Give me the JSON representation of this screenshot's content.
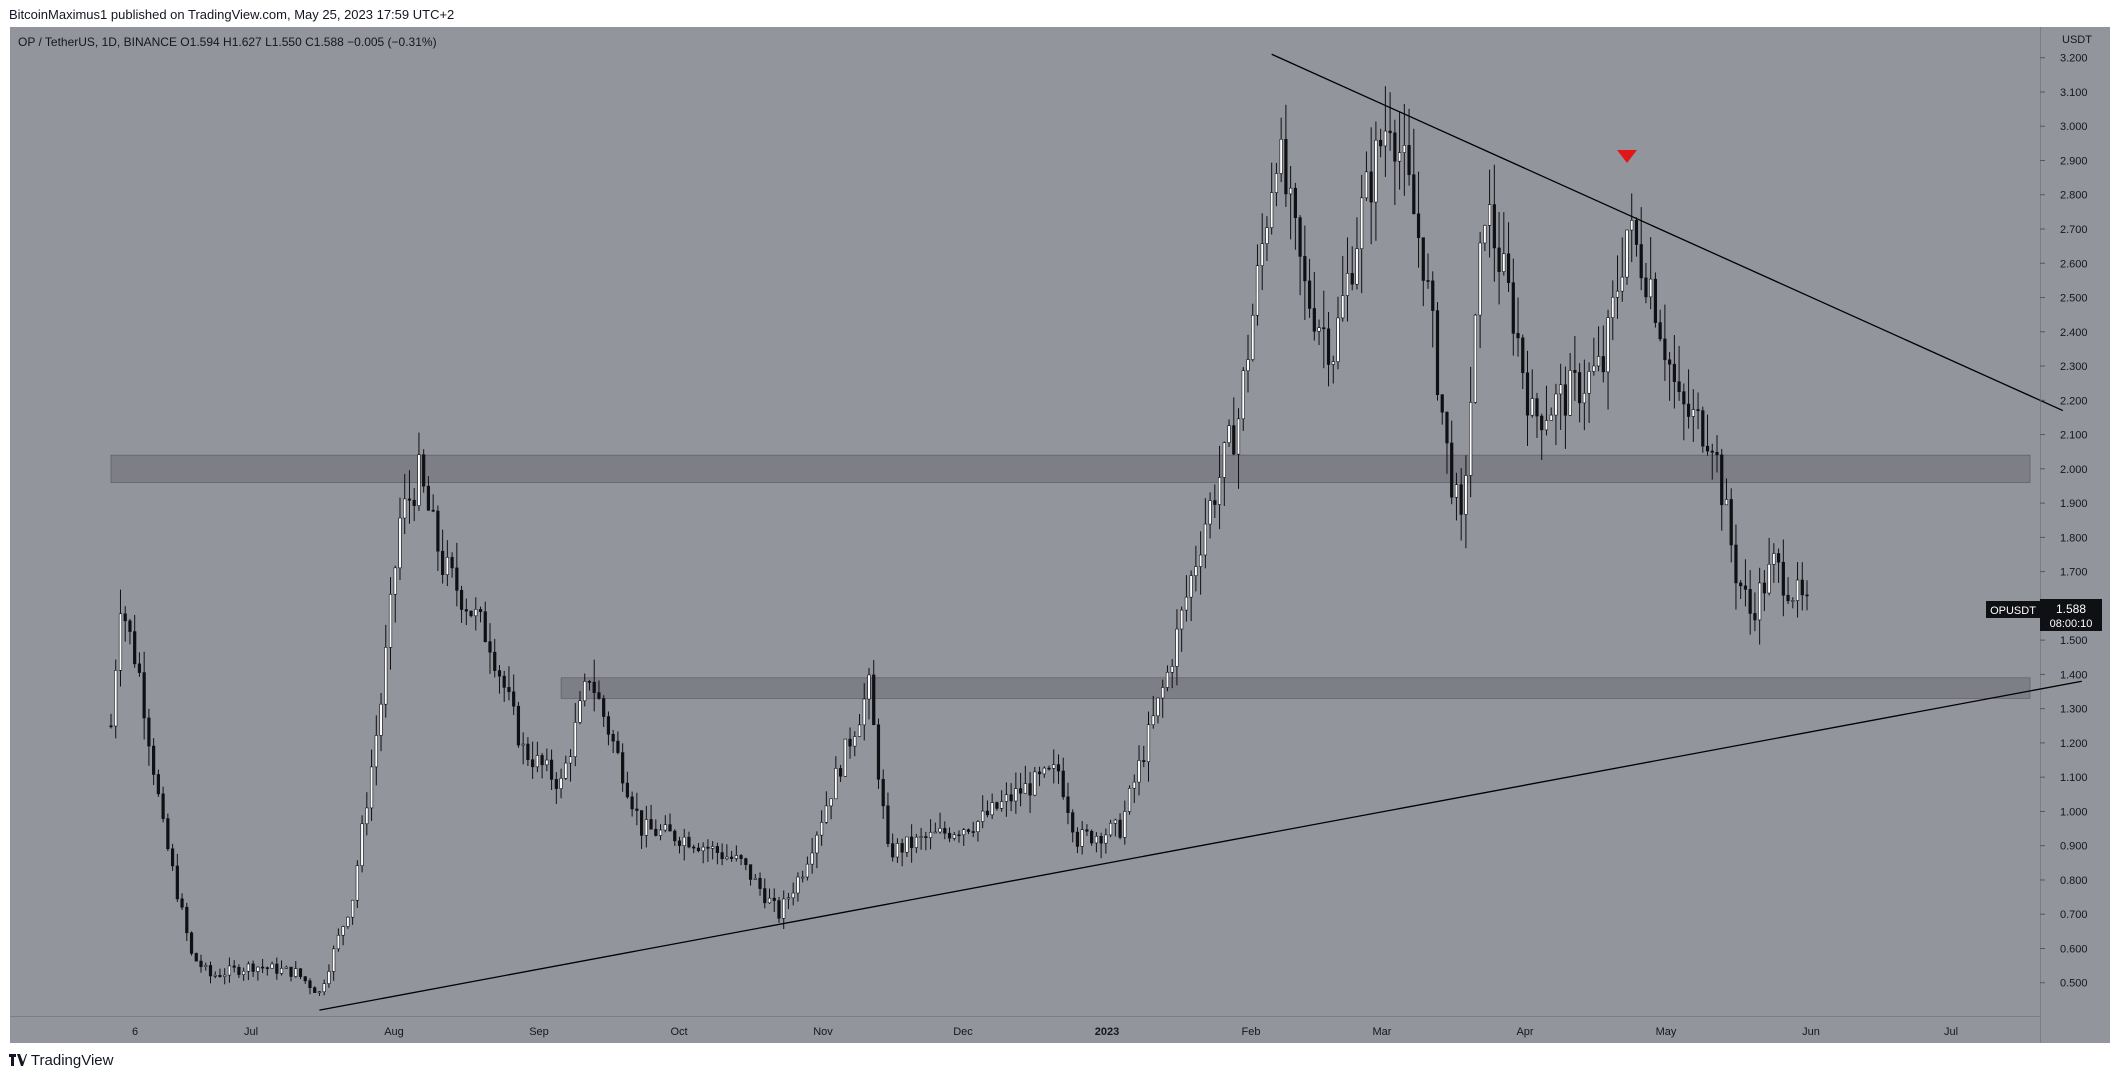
{
  "header": {
    "publisher": "BitcoinMaximus1",
    "published_text": "published on TradingView.com, May 25, 2023 17:59 UTC+2"
  },
  "legend": {
    "symbol": "OP / TetherUS, 1D, BINANCE",
    "o_label": "O",
    "o_value": "1.594",
    "h_label": "H",
    "h_value": "1.627",
    "l_label": "L",
    "l_value": "1.550",
    "c_label": "C",
    "c_value": "1.588",
    "change": "−0.005 (−0.31%)"
  },
  "price_axis": {
    "currency": "USDT",
    "ticks": [
      "3.200",
      "3.100",
      "3.000",
      "2.900",
      "2.800",
      "2.700",
      "2.600",
      "2.500",
      "2.400",
      "2.300",
      "2.200",
      "2.100",
      "2.000",
      "1.900",
      "1.800",
      "1.700",
      "1.600",
      "1.500",
      "1.400",
      "1.300",
      "1.200",
      "1.100",
      "1.000",
      "0.900",
      "0.800",
      "0.700",
      "0.600",
      "0.500"
    ]
  },
  "time_axis": {
    "labels": [
      "6",
      "Jul",
      "Aug",
      "Sep",
      "Oct",
      "Nov",
      "Dec",
      "2023",
      "Feb",
      "Mar",
      "Apr",
      "May",
      "Jun",
      "Jul"
    ]
  },
  "price_tag": {
    "symbol": "OPUSDT",
    "price": "1.588",
    "countdown": "08:00:10"
  },
  "footer": {
    "logo_text": "TradingView"
  },
  "colors": {
    "background": "#93959c",
    "candle": "#0f1014",
    "zone": "#6e7078",
    "trendline": "#000000",
    "marker": "#e0161b"
  },
  "chart_data": {
    "type": "candlestick",
    "symbol": "OP / TetherUS",
    "interval": "1D",
    "exchange": "BINANCE",
    "ylim": [
      0.4,
      3.24
    ],
    "y_unit": "USDT",
    "x_range": [
      "2022-06-01",
      "2023-07-25"
    ],
    "ohlc_anchor_series": [
      [
        "2022-06-01",
        1.25
      ],
      [
        "2022-06-03",
        1.62
      ],
      [
        "2022-06-07",
        1.4
      ],
      [
        "2022-06-12",
        0.95
      ],
      [
        "2022-06-18",
        0.58
      ],
      [
        "2022-06-22",
        0.52
      ],
      [
        "2022-07-01",
        0.55
      ],
      [
        "2022-07-10",
        0.53
      ],
      [
        "2022-07-15",
        0.47
      ],
      [
        "2022-07-22",
        0.75
      ],
      [
        "2022-07-28",
        1.32
      ],
      [
        "2022-08-01",
        1.85
      ],
      [
        "2022-08-05",
        1.98
      ],
      [
        "2022-08-10",
        1.72
      ],
      [
        "2022-08-20",
        1.5
      ],
      [
        "2022-08-27",
        1.18
      ],
      [
        "2022-09-04",
        1.08
      ],
      [
        "2022-09-10",
        1.4
      ],
      [
        "2022-09-16",
        1.16
      ],
      [
        "2022-09-21",
        0.95
      ],
      [
        "2022-10-01",
        0.92
      ],
      [
        "2022-10-12",
        0.85
      ],
      [
        "2022-10-20",
        0.7
      ],
      [
        "2022-10-25",
        0.83
      ],
      [
        "2022-11-01",
        1.1
      ],
      [
        "2022-11-08",
        1.36
      ],
      [
        "2022-11-12",
        0.88
      ],
      [
        "2022-11-20",
        0.92
      ],
      [
        "2022-12-01",
        0.97
      ],
      [
        "2022-12-10",
        1.06
      ],
      [
        "2022-12-18",
        1.12
      ],
      [
        "2022-12-22",
        0.92
      ],
      [
        "2022-12-31",
        0.95
      ],
      [
        "2023-01-10",
        1.4
      ],
      [
        "2023-01-18",
        1.85
      ],
      [
        "2023-01-25",
        2.15
      ],
      [
        "2023-02-02",
        2.95
      ],
      [
        "2023-02-08",
        2.52
      ],
      [
        "2023-02-14",
        2.35
      ],
      [
        "2023-02-20",
        2.75
      ],
      [
        "2023-02-26",
        3.05
      ],
      [
        "2023-03-05",
        2.62
      ],
      [
        "2023-03-10",
        2.05
      ],
      [
        "2023-03-13",
        1.82
      ],
      [
        "2023-03-18",
        2.78
      ],
      [
        "2023-03-24",
        2.45
      ],
      [
        "2023-03-28",
        2.15
      ],
      [
        "2023-04-05",
        2.22
      ],
      [
        "2023-04-12",
        2.3
      ],
      [
        "2023-04-17",
        2.7
      ],
      [
        "2023-04-22",
        2.55
      ],
      [
        "2023-04-28",
        2.18
      ],
      [
        "2023-05-05",
        2.1
      ],
      [
        "2023-05-10",
        1.7
      ],
      [
        "2023-05-13",
        1.58
      ],
      [
        "2023-05-18",
        1.72
      ],
      [
        "2023-05-25",
        1.588
      ]
    ],
    "support_zones": [
      {
        "from": "2022-06-01",
        "to": "2023-07-25",
        "low": 1.96,
        "high": 2.04
      },
      {
        "from": "2022-09-04",
        "to": "2023-07-25",
        "low": 1.33,
        "high": 1.39
      }
    ],
    "trendlines": [
      {
        "from": [
          "2023-02-01",
          3.21
        ],
        "to": [
          "2023-07-18",
          2.17
        ]
      },
      {
        "from": [
          "2022-07-15",
          0.42
        ],
        "to": [
          "2023-07-22",
          1.38
        ]
      }
    ],
    "markers": [
      {
        "date": "2023-04-17",
        "value": 2.91,
        "shape": "down-triangle"
      }
    ]
  }
}
